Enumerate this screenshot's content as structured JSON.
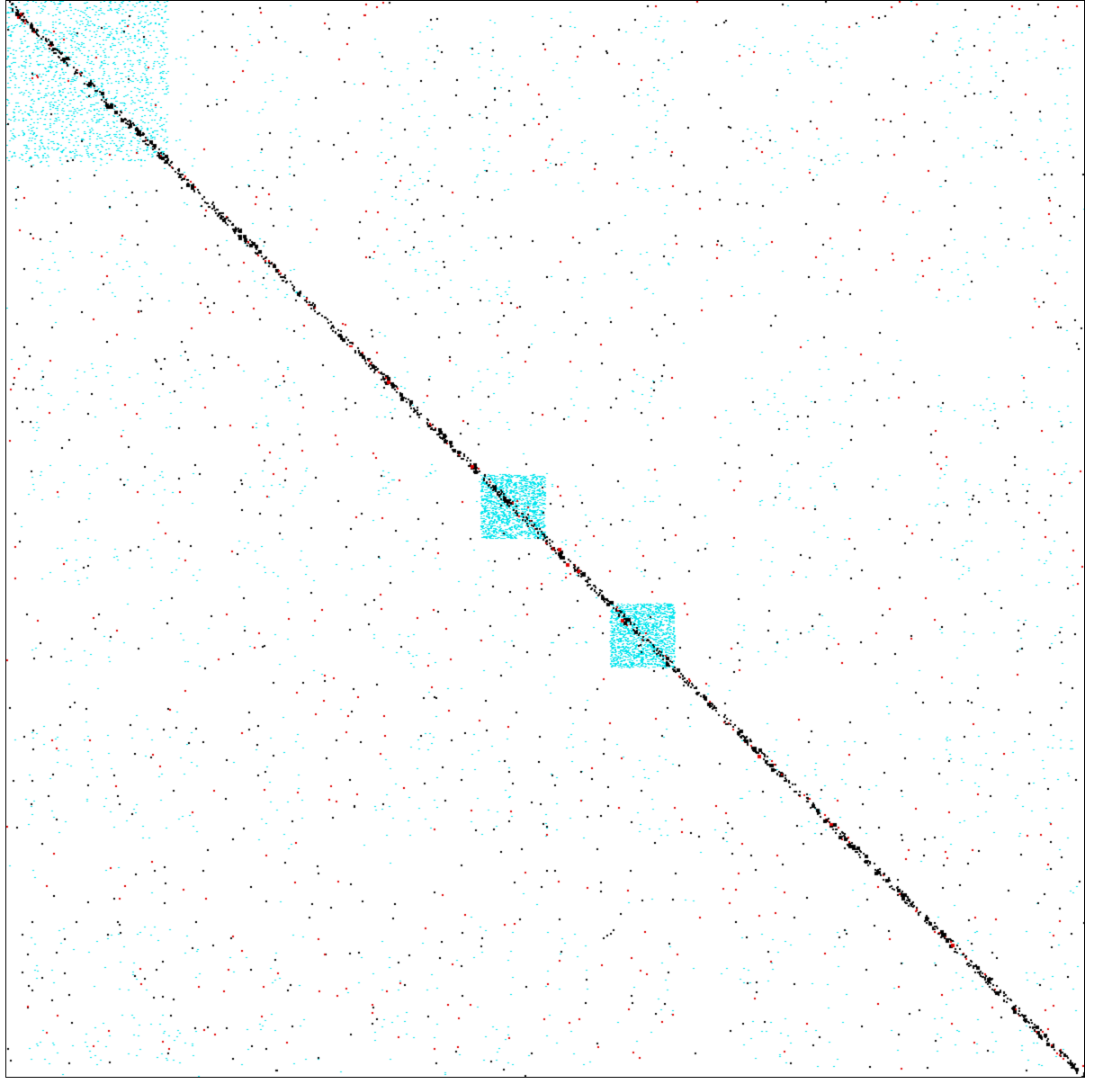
{
  "chart_data": {
    "type": "heatmap",
    "title": "",
    "xlabel": "",
    "ylabel": "",
    "grid": false,
    "legend": "none",
    "colors": {
      "background": "#ffffff",
      "offdiagonal": "#00e5ee",
      "diagonal": "#000000",
      "highlight": "#e00000",
      "frame": "#000000"
    },
    "diagonal_blocks": [
      {
        "start": 0.0,
        "end": 0.15
      },
      {
        "start": 0.44,
        "end": 0.5
      },
      {
        "start": 0.56,
        "end": 0.62
      }
    ]
  }
}
